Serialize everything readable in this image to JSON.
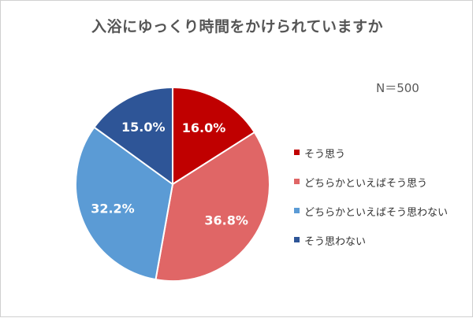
{
  "chart_data": {
    "type": "pie",
    "title": "入浴にゆっくり時間をかけられていますか",
    "note": "N＝500",
    "slices": [
      {
        "label": "そう思う",
        "value": 16.0,
        "display": "16.0%",
        "color": "#c00000"
      },
      {
        "label": "どちらかといえばそう思う",
        "value": 36.8,
        "display": "36.8%",
        "color": "#e06666"
      },
      {
        "label": "どちらかといえばそう思わない",
        "value": 32.2,
        "display": "32.2%",
        "color": "#5b9bd5"
      },
      {
        "label": "そう思わない",
        "value": 15.0,
        "display": "15.0%",
        "color": "#2e5597"
      }
    ],
    "legend_position": "right",
    "direction": "clockwise",
    "start": "top"
  }
}
